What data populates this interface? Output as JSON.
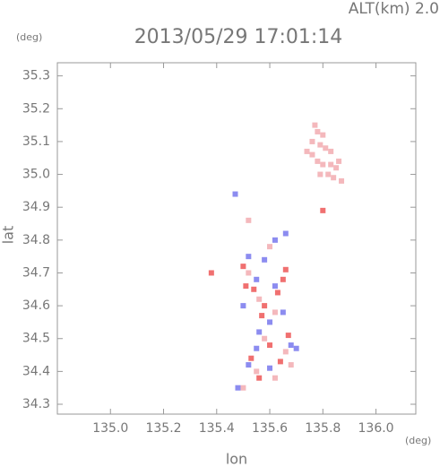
{
  "chart_data": {
    "type": "scatter",
    "title": "2013/05/29 17:01:14",
    "subtitle": "ALT(km) 2.0",
    "x_label": "lon",
    "y_label": "lat",
    "x_unit": "(deg)",
    "y_unit": "(deg)",
    "xlim": [
      134.8,
      136.15
    ],
    "ylim": [
      34.27,
      35.34
    ],
    "xticks": [
      {
        "value": 135,
        "label": "135.0"
      },
      135.2,
      135.4,
      135.6,
      135.8,
      {
        "value": 136,
        "label": "136.0"
      }
    ],
    "yticks": [
      34.3,
      34.4,
      34.5,
      34.6,
      34.7,
      34.8,
      34.9,
      {
        "value": 35,
        "label": "35.0"
      },
      35.1,
      35.2,
      35.3
    ],
    "series": [
      {
        "color": "#f4b8bc",
        "x": [
          135.77,
          135.78,
          135.76,
          135.79,
          135.81,
          135.83,
          135.76,
          135.78,
          135.8,
          135.83,
          135.85,
          135.86,
          135.79,
          135.82,
          135.84,
          135.87,
          135.8,
          135.74,
          135.52,
          135.6,
          135.52,
          135.56,
          135.62,
          135.58,
          135.66,
          135.55,
          135.62,
          135.5,
          135.68
        ],
        "values": [
          35.15,
          35.13,
          35.1,
          35.09,
          35.08,
          35.07,
          35.06,
          35.04,
          35.03,
          35.03,
          35.02,
          35.04,
          35,
          35,
          34.99,
          34.98,
          35.12,
          35.07,
          34.86,
          34.78,
          34.7,
          34.62,
          34.58,
          34.5,
          34.46,
          34.4,
          34.38,
          34.35,
          34.42
        ]
      },
      {
        "color": "#f07070",
        "x": [
          135.51,
          135.54,
          135.63,
          135.65,
          135.57,
          135.6,
          135.67,
          135.53,
          135.64,
          135.58,
          135.5,
          135.66,
          135.8,
          135.38,
          135.56
        ],
        "values": [
          34.66,
          34.65,
          34.64,
          34.68,
          34.57,
          34.48,
          34.51,
          34.44,
          34.43,
          34.6,
          34.72,
          34.71,
          34.89,
          34.7,
          34.38
        ]
      },
      {
        "color": "#8c8cf0",
        "x": [
          135.52,
          135.58,
          135.62,
          135.66,
          135.55,
          135.62,
          135.5,
          135.6,
          135.56,
          135.65,
          135.55,
          135.68,
          135.52,
          135.6,
          135.47,
          135.48,
          135.7
        ],
        "values": [
          34.75,
          34.74,
          34.8,
          34.82,
          34.68,
          34.66,
          34.6,
          34.55,
          34.52,
          34.58,
          34.47,
          34.48,
          34.42,
          34.41,
          34.94,
          34.35,
          34.47
        ]
      }
    ]
  }
}
